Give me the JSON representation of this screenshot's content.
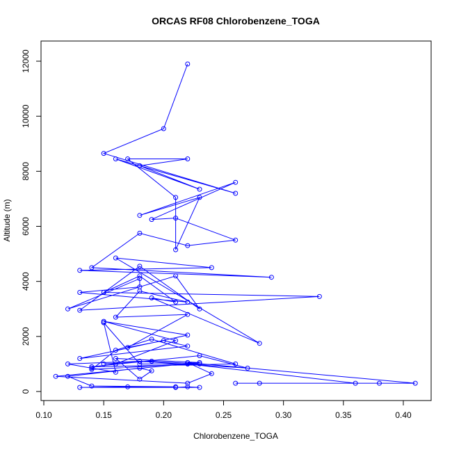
{
  "chart_data": {
    "type": "line",
    "title": "ORCAS RF08 Chlorobenzene_TOGA",
    "xlabel": "Chlorobenzene_TOGA",
    "ylabel": "Altitude (m)",
    "xlim": [
      0.1,
      0.42
    ],
    "ylim": [
      0,
      12500
    ],
    "xticks": [
      0.1,
      0.15,
      0.2,
      0.25,
      0.3,
      0.35,
      0.4
    ],
    "xtick_labels": [
      "0.10",
      "0.15",
      "0.20",
      "0.25",
      "0.30",
      "0.35",
      "0.40"
    ],
    "yticks": [
      0,
      2000,
      4000,
      6000,
      8000,
      10000,
      12000
    ],
    "ytick_labels": [
      "0",
      "2000",
      "4000",
      "6000",
      "8000",
      "10000",
      "12000"
    ],
    "grid": false,
    "legend": false,
    "marker": "open-circle",
    "color": "#0000ff",
    "series": [
      {
        "x": [
          0.21,
          0.22,
          0.23,
          0.13,
          0.17,
          0.21,
          0.14,
          0.12,
          0.18,
          0.19,
          0.18,
          0.16,
          0.23,
          0.11,
          0.22,
          0.24,
          0.22,
          0.41,
          0.26,
          0.38,
          0.28,
          0.36,
          0.22,
          0.22,
          0.14,
          0.16,
          0.19,
          0.26,
          0.14,
          0.23,
          0.27,
          0.18,
          0.12,
          0.14,
          0.16,
          0.15,
          0.15,
          0.18,
          0.23,
          0.19,
          0.15,
          0.16,
          0.21,
          0.15,
          0.22,
          0.13,
          0.22,
          0.2,
          0.17,
          0.22,
          0.16,
          0.18,
          0.22,
          0.13,
          0.18,
          0.18,
          0.12,
          0.21,
          0.23,
          0.18,
          0.13,
          0.33,
          0.15,
          0.18,
          0.21,
          0.19,
          0.28,
          0.16,
          0.24,
          0.13,
          0.29,
          0.14,
          0.18,
          0.22,
          0.26,
          0.21,
          0.19,
          0.26,
          0.18,
          0.23,
          0.21,
          0.21,
          0.17,
          0.22,
          0.18,
          0.23,
          0.16,
          0.26,
          0.15,
          0.2,
          0.22
        ],
        "y": [
          150,
          170,
          150,
          150,
          170,
          170,
          200,
          550,
          850,
          750,
          450,
          1200,
          1050,
          550,
          300,
          650,
          1050,
          300,
          300,
          300,
          300,
          300,
          1000,
          1000,
          800,
          1500,
          1900,
          1000,
          900,
          1300,
          850,
          1100,
          1000,
          850,
          700,
          2500,
          2500,
          1000,
          1000,
          1100,
          1000,
          1000,
          1850,
          2550,
          2050,
          1200,
          1650,
          1850,
          1600,
          2800,
          2700,
          3650,
          3250,
          3600,
          3800,
          4100,
          3000,
          4200,
          3000,
          4550,
          2950,
          3450,
          3600,
          4200,
          3250,
          3400,
          1750,
          4850,
          4500,
          4400,
          4150,
          4500,
          5750,
          5300,
          5500,
          6300,
          6250,
          7600,
          6400,
          7050,
          5150,
          7050,
          8450,
          8450,
          8200,
          7350,
          8450,
          7200,
          8650,
          9550,
          11900
        ]
      }
    ]
  }
}
